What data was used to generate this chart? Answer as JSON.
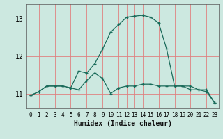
{
  "title": "",
  "xlabel": "Humidex (Indice chaleur)",
  "ylabel": "",
  "bg_color": "#cce8e0",
  "grid_color": "#e08080",
  "line_color": "#1a6b5a",
  "x_ticks": [
    0,
    1,
    2,
    3,
    4,
    5,
    6,
    7,
    8,
    9,
    10,
    11,
    12,
    13,
    14,
    15,
    16,
    17,
    18,
    19,
    20,
    21,
    22,
    23
  ],
  "y_ticks": [
    11,
    12,
    13
  ],
  "ylim": [
    10.6,
    13.4
  ],
  "xlim": [
    -0.5,
    23.5
  ],
  "line1_x": [
    0,
    1,
    2,
    3,
    4,
    5,
    6,
    7,
    8,
    9,
    10,
    11,
    12,
    13,
    14,
    15,
    16,
    17,
    18,
    19,
    20,
    21,
    22,
    23
  ],
  "line1_y": [
    10.95,
    11.05,
    11.2,
    11.2,
    11.2,
    11.15,
    11.1,
    11.35,
    11.55,
    11.4,
    11.0,
    11.15,
    11.2,
    11.2,
    11.25,
    11.25,
    11.2,
    11.2,
    11.2,
    11.2,
    11.2,
    11.1,
    11.1,
    10.75
  ],
  "line2_x": [
    0,
    1,
    2,
    3,
    4,
    5,
    6,
    7,
    8,
    9,
    10,
    11,
    12,
    13,
    14,
    15,
    16,
    17,
    18,
    19,
    20,
    21,
    22,
    23
  ],
  "line2_y": [
    10.95,
    11.05,
    11.2,
    11.2,
    11.2,
    11.15,
    11.6,
    11.55,
    11.8,
    12.2,
    12.65,
    12.85,
    13.05,
    13.08,
    13.1,
    13.05,
    12.9,
    12.2,
    11.2,
    11.2,
    11.1,
    11.1,
    11.05,
    10.75
  ],
  "xlabel_fontsize": 7,
  "tick_fontsize": 5.5,
  "ytick_fontsize": 7
}
